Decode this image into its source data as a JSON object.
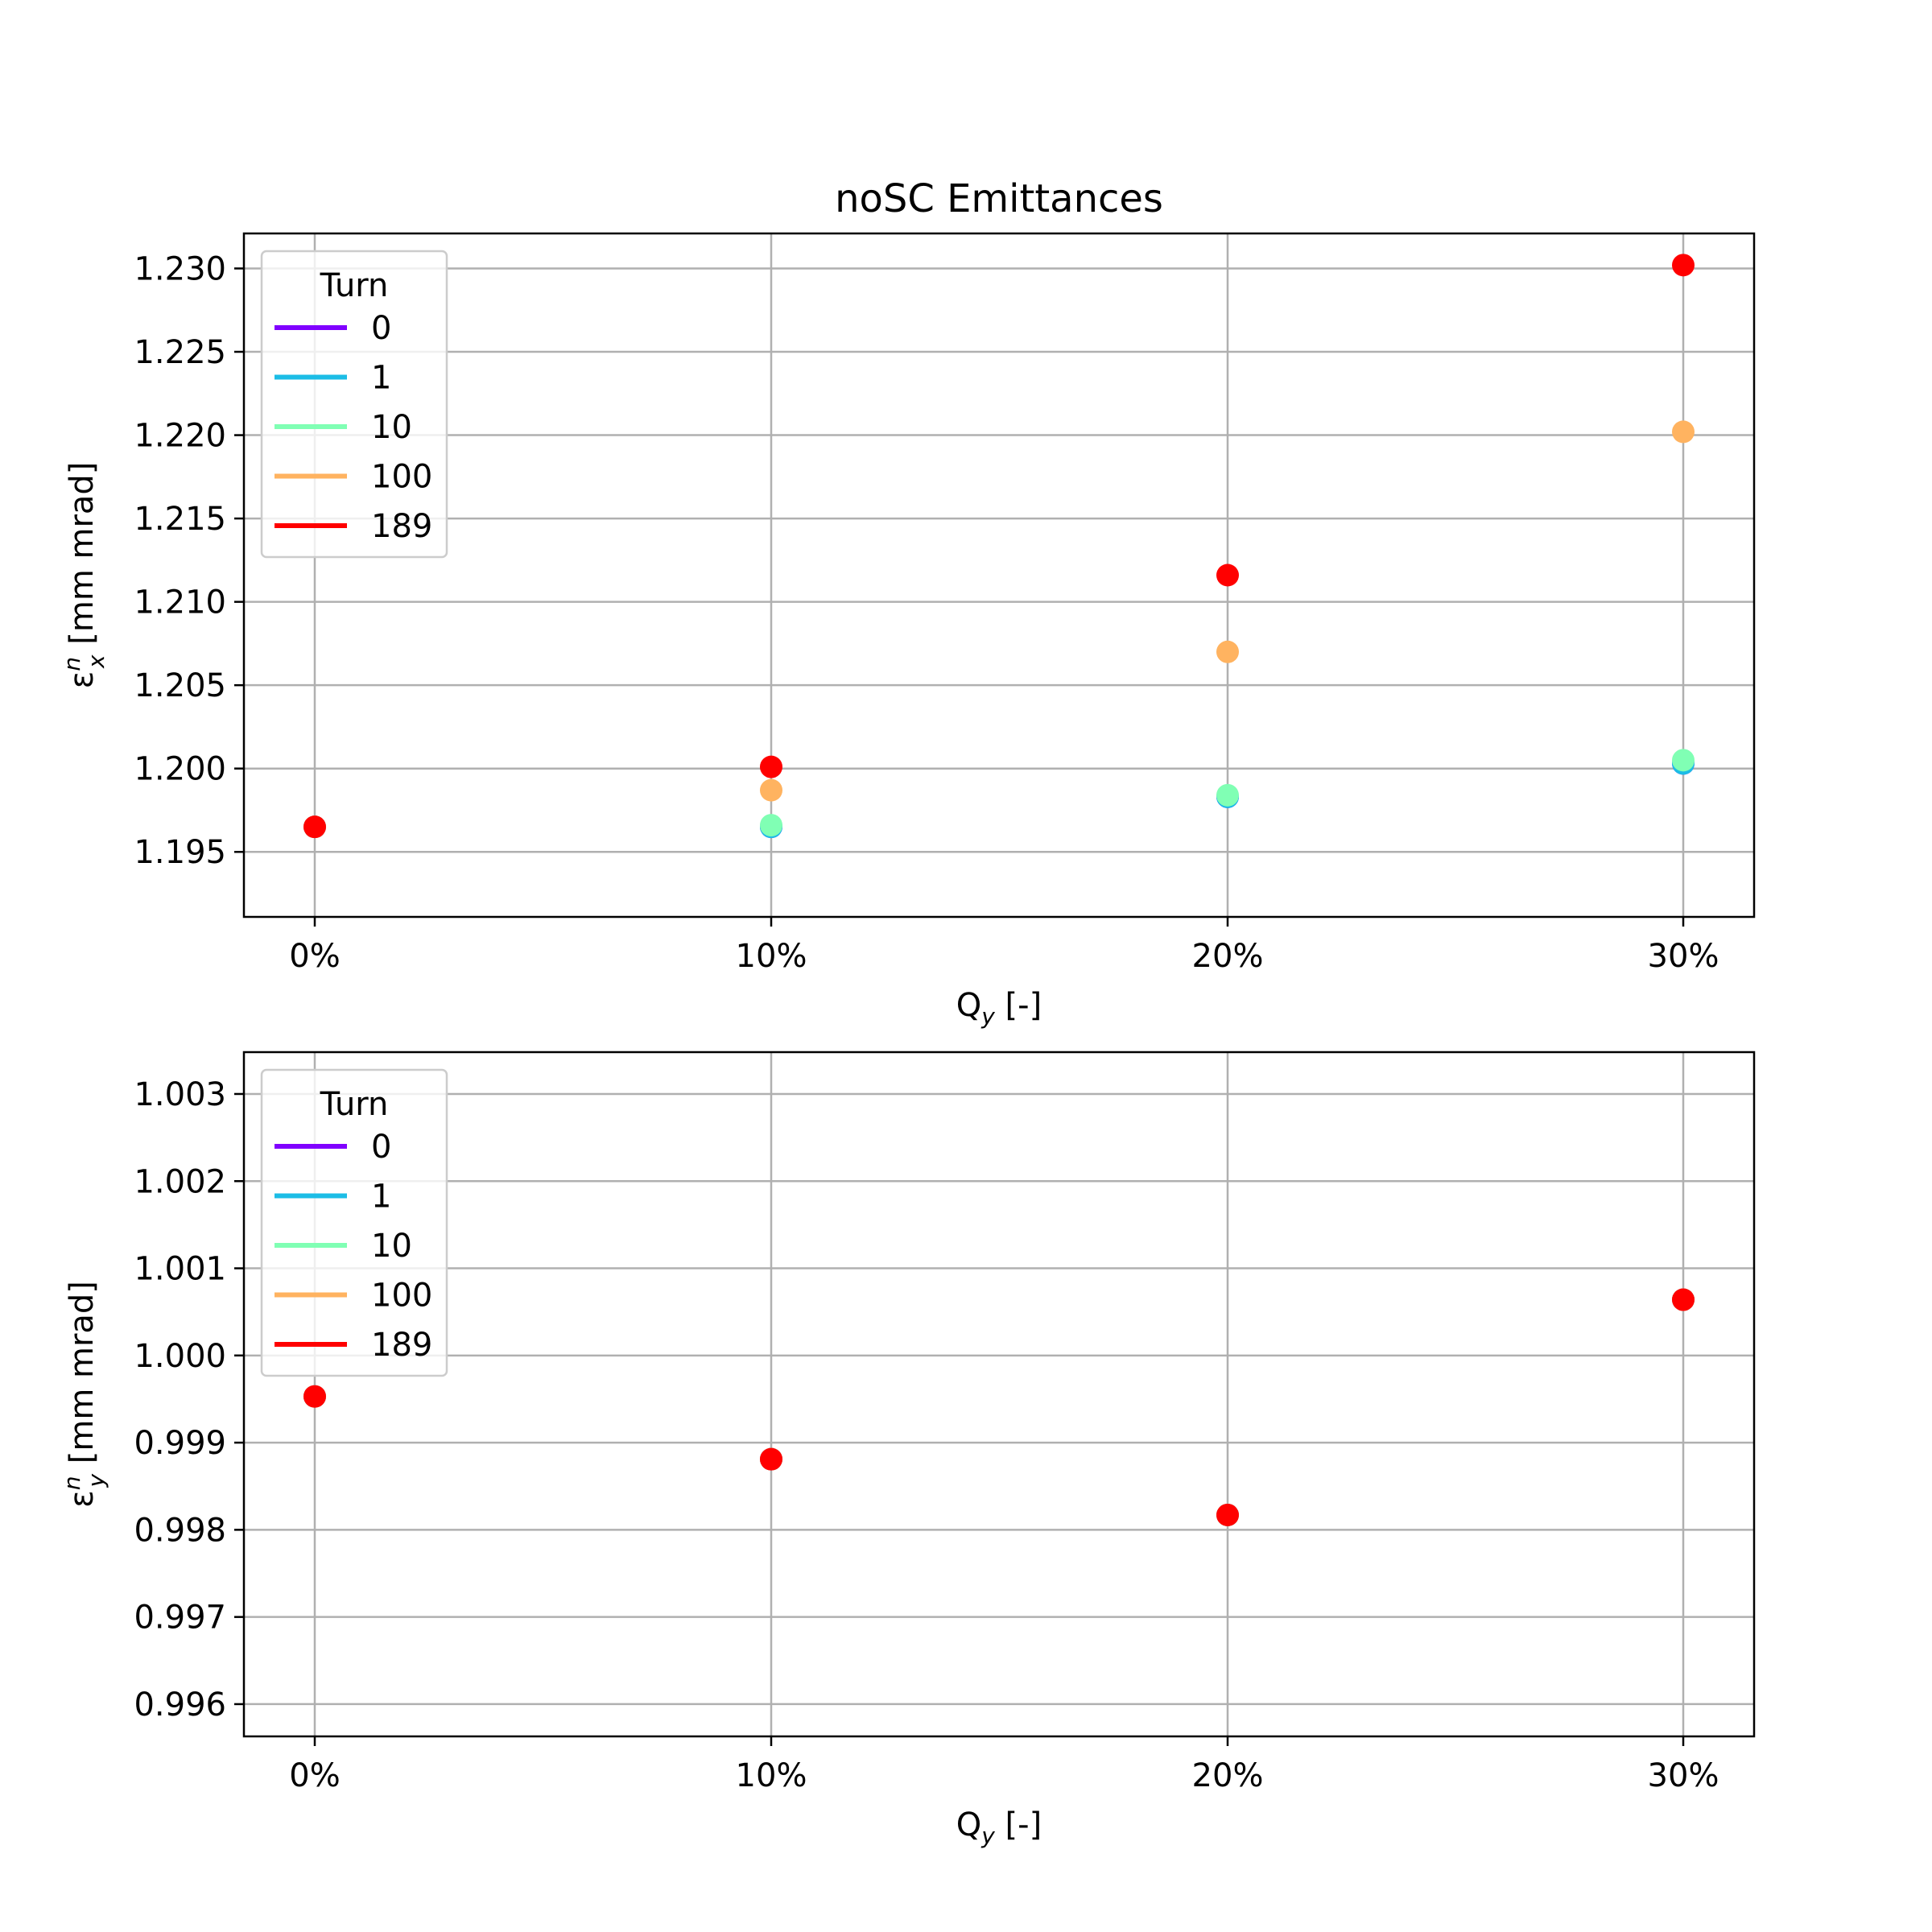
{
  "figure": {
    "title": "noSC Emittances"
  },
  "colors": {
    "0": "#8000ff",
    "1": "#1cbde6",
    "10": "#80ffb4",
    "100": "#ffb360",
    "189": "#ff0000"
  },
  "chart_data": [
    {
      "type": "scatter",
      "xlabel": "Q_y [-]",
      "ylabel": "ε_x^n [mm mrad]",
      "categories": [
        "0%",
        "10%",
        "20%",
        "30%"
      ],
      "ylim": [
        1.1911,
        1.2321
      ],
      "yticks": [
        "1.195",
        "1.200",
        "1.205",
        "1.210",
        "1.215",
        "1.220",
        "1.225",
        "1.230"
      ],
      "grid": true,
      "legend": {
        "title": "Turn",
        "placement": "upper left",
        "entries": [
          "0",
          "1",
          "10",
          "100",
          "189"
        ]
      },
      "series": [
        {
          "name": "0",
          "values": [
            1.1965,
            1.1965,
            1.1983,
            1.2003
          ]
        },
        {
          "name": "1",
          "values": [
            1.1965,
            1.1965,
            1.1983,
            1.2003
          ]
        },
        {
          "name": "10",
          "values": [
            1.1965,
            1.1966,
            1.1984,
            1.2005
          ]
        },
        {
          "name": "100",
          "values": [
            1.1965,
            1.1987,
            1.207,
            1.2202
          ]
        },
        {
          "name": "189",
          "values": [
            1.1965,
            1.2001,
            1.2116,
            1.2302
          ]
        }
      ]
    },
    {
      "type": "scatter",
      "xlabel": "Q_y [-]",
      "ylabel": "ε_y^n [mm mrad]",
      "categories": [
        "0%",
        "10%",
        "20%",
        "30%"
      ],
      "ylim": [
        0.99563,
        1.00348
      ],
      "yticks": [
        "0.996",
        "0.997",
        "0.998",
        "0.999",
        "1.000",
        "1.001",
        "1.002",
        "1.003"
      ],
      "grid": true,
      "legend": {
        "title": "Turn",
        "placement": "upper left",
        "entries": [
          "0",
          "1",
          "10",
          "100",
          "189"
        ]
      },
      "series": [
        {
          "name": "0",
          "values": [
            0.99953,
            0.99881,
            0.99817,
            1.00064
          ]
        },
        {
          "name": "1",
          "values": [
            0.99953,
            0.99881,
            0.99817,
            1.00064
          ]
        },
        {
          "name": "10",
          "values": [
            0.99953,
            0.99881,
            0.99817,
            1.00064
          ]
        },
        {
          "name": "100",
          "values": [
            0.99953,
            0.99881,
            0.99817,
            1.00064
          ]
        },
        {
          "name": "189",
          "values": [
            0.99953,
            0.99881,
            0.99817,
            1.00064
          ]
        }
      ]
    }
  ]
}
